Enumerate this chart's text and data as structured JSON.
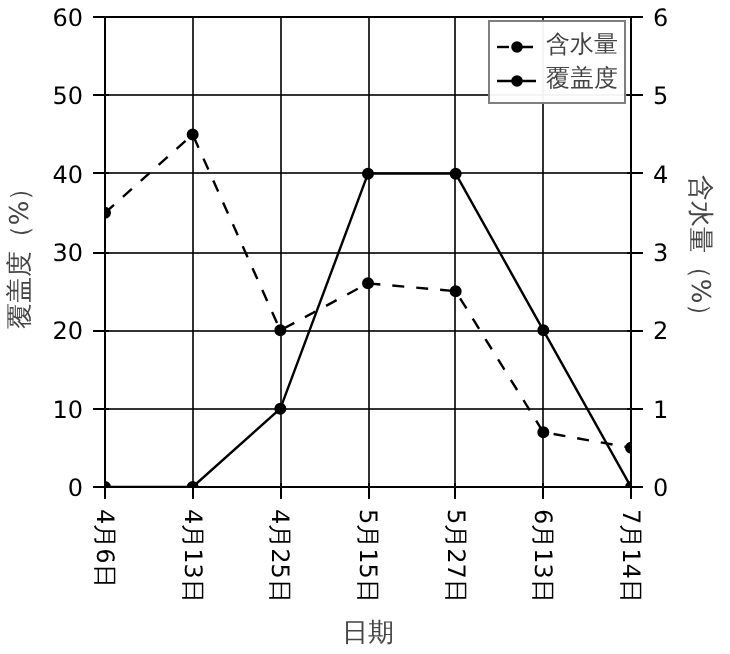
{
  "chart_data": {
    "type": "line",
    "categories": [
      "4月6日",
      "4月13日",
      "4月25日",
      "5月15日",
      "5月27日",
      "6月13日",
      "7月14日"
    ],
    "xlabel": "日期",
    "ylabel": "覆盖度（%）",
    "y2label": "含水量（%）",
    "series": [
      {
        "name": "含水量",
        "color": "#000000",
        "axis": "y2",
        "line_style": "dashed",
        "values": [
          3.5,
          4.5,
          2.0,
          2.6,
          2.5,
          0.7,
          0.5
        ]
      },
      {
        "name": "覆盖度",
        "color": "#000000",
        "line_style": "solid",
        "values": [
          0,
          0,
          10,
          40,
          40,
          20,
          0
        ]
      }
    ],
    "ylim": [
      0,
      60
    ],
    "yticks": [
      0,
      10,
      20,
      30,
      40,
      50,
      60
    ],
    "y2lim": [
      0,
      6
    ],
    "y2ticks": [
      0,
      1,
      2,
      3,
      4,
      5,
      6
    ],
    "grid": true,
    "legend": "top right",
    "marker": "circle"
  }
}
